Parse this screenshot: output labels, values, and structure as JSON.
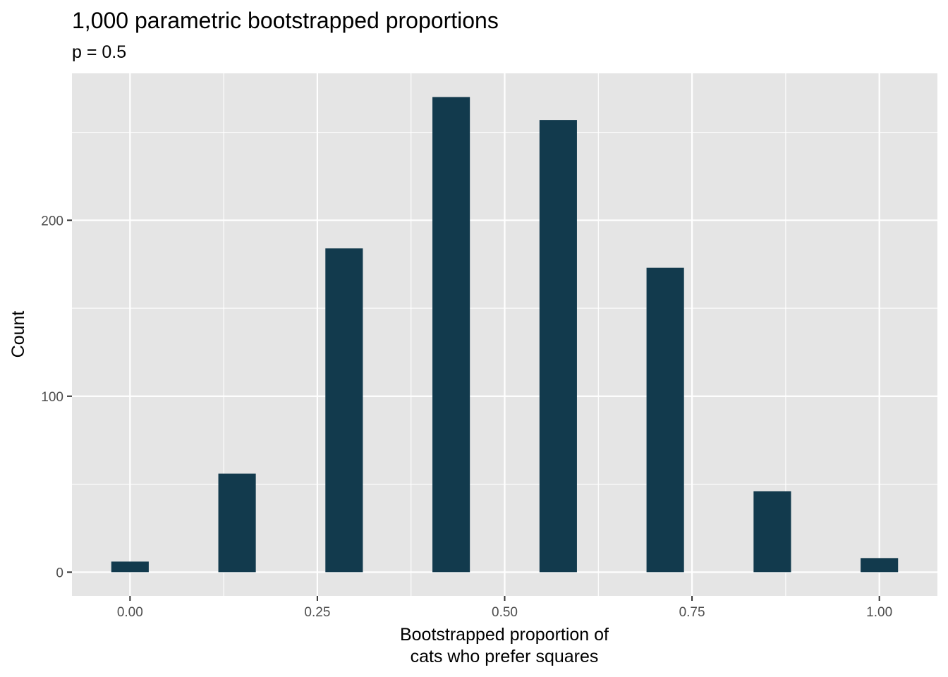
{
  "chart_data": {
    "type": "bar",
    "title": "1,000 parametric bootstrapped proportions",
    "subtitle": "p = 0.5",
    "xlabel": [
      "Bootstrapped proportion of",
      "cats who prefer squares"
    ],
    "ylabel": "Count",
    "x": [
      0.0,
      0.142857,
      0.285714,
      0.428571,
      0.571429,
      0.714286,
      0.857143,
      1.0
    ],
    "values": [
      6,
      56,
      184,
      270,
      257,
      173,
      46,
      8
    ],
    "x_ticks": [
      0.0,
      0.25,
      0.5,
      0.75,
      1.0
    ],
    "x_tick_labels": [
      "0.00",
      "0.25",
      "0.50",
      "0.75",
      "1.00"
    ],
    "y_ticks": [
      0,
      100,
      200
    ],
    "y_tick_labels": [
      "0",
      "100",
      "200"
    ],
    "xlim": [
      -0.0775,
      1.0775
    ],
    "ylim": [
      -13.5,
      283.5
    ],
    "bar_width": 0.05,
    "grid": true,
    "colors": {
      "bar": "#123A4D",
      "panel": "#E5E5E5",
      "grid": "#FFFFFF"
    }
  }
}
